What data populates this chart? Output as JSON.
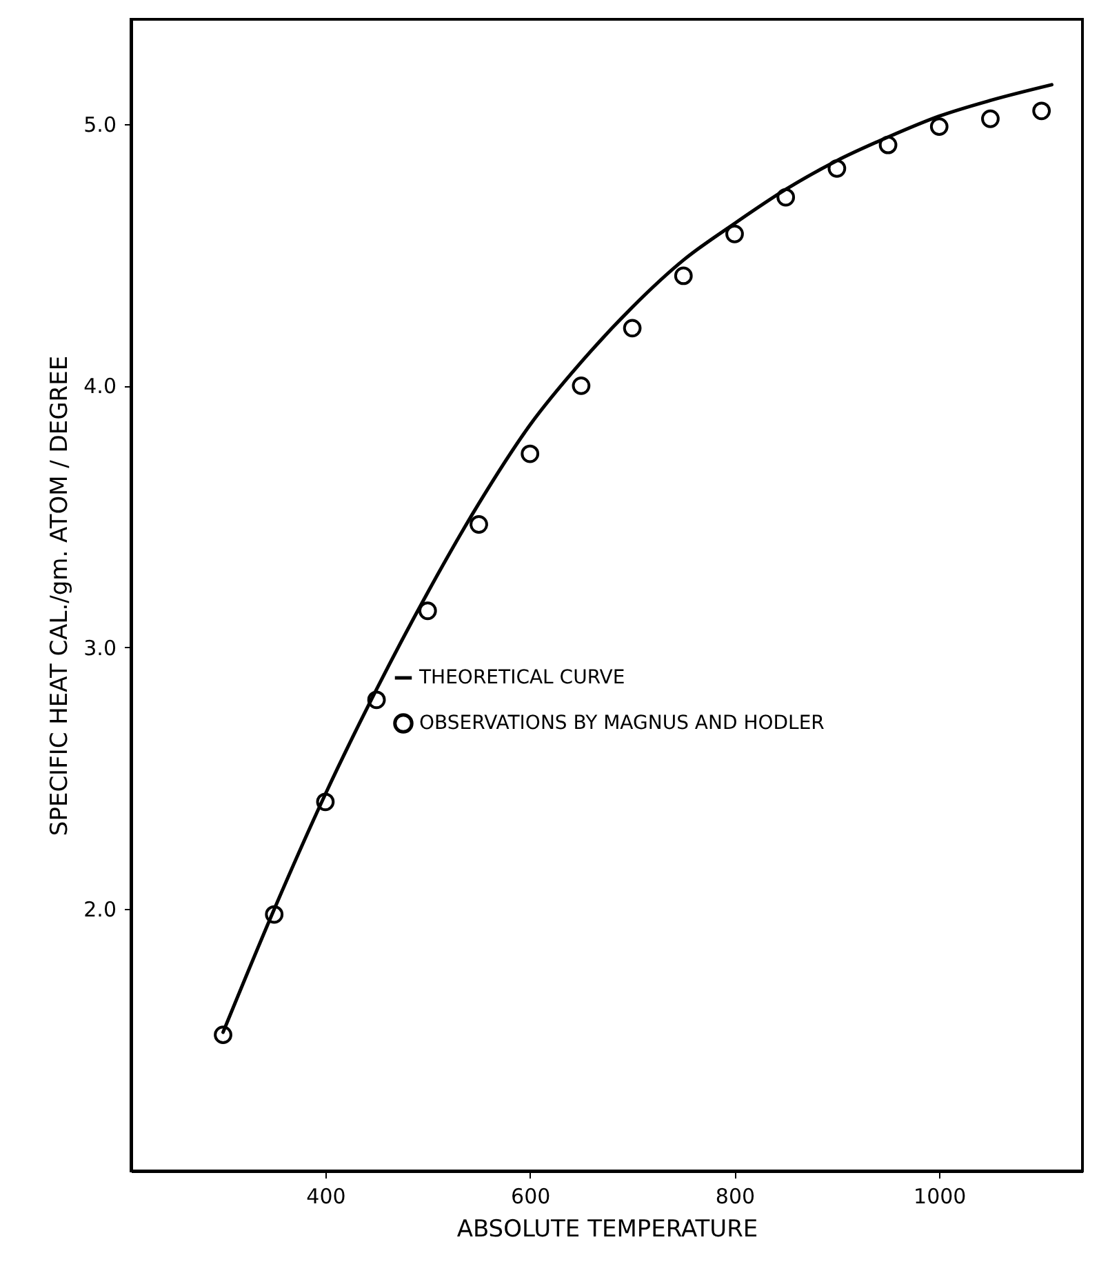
{
  "chart_data": {
    "type": "line",
    "xlabel": "ABSOLUTE TEMPERATURE",
    "ylabel": "SPECIFIC HEAT CAL./gm. ATOM / DEGREE",
    "xlim": [
      210,
      1140
    ],
    "ylim": [
      1.0,
      5.4
    ],
    "xticks": [
      400,
      600,
      800,
      1000
    ],
    "yticks": [
      {
        "value": 2,
        "label": "2.0"
      },
      {
        "value": 3,
        "label": "3.0"
      },
      {
        "value": 4,
        "label": "4.0"
      },
      {
        "value": 5,
        "label": "5.0"
      }
    ],
    "grid": false,
    "legend": "right",
    "line_style": "solid",
    "series": [
      {
        "name": "THEORETICAL CURVE",
        "type": "line",
        "color": "#000000",
        "x": [
          300,
          350,
          400,
          450,
          500,
          550,
          600,
          650,
          700,
          750,
          800,
          850,
          900,
          950,
          1000,
          1050,
          1110
        ],
        "values": [
          1.53,
          2.0,
          2.44,
          2.84,
          3.21,
          3.55,
          3.85,
          4.09,
          4.3,
          4.48,
          4.62,
          4.75,
          4.86,
          4.95,
          5.03,
          5.09,
          5.15
        ]
      },
      {
        "name": "OBSERVATIONS BY MAGNUS AND HODLER",
        "type": "scatter",
        "marker": "circle",
        "color": "#000000",
        "x": [
          300,
          350,
          400,
          450,
          500,
          550,
          600,
          650,
          700,
          750,
          800,
          850,
          900,
          950,
          1000,
          1050,
          1100
        ],
        "values": [
          1.52,
          1.98,
          2.41,
          2.8,
          3.14,
          3.47,
          3.74,
          4.0,
          4.22,
          4.42,
          4.58,
          4.72,
          4.83,
          4.92,
          4.99,
          5.02,
          5.05
        ]
      }
    ]
  }
}
